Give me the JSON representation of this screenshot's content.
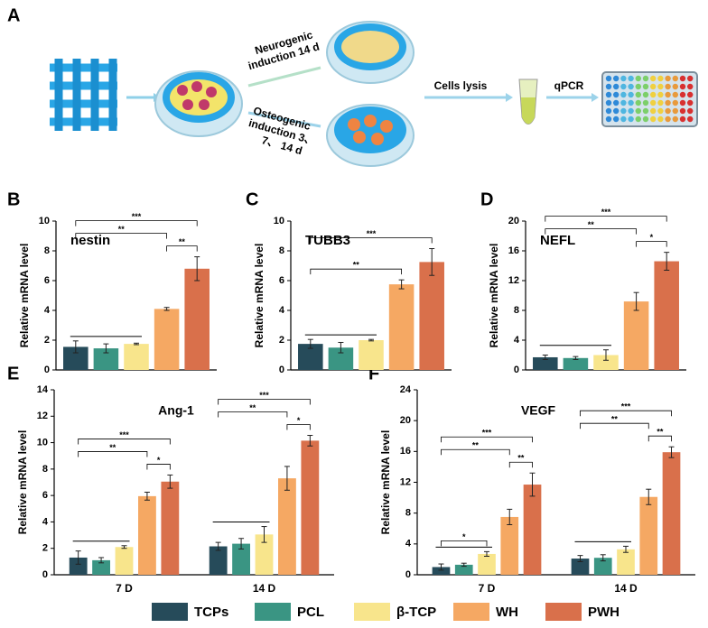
{
  "panel_labels": [
    "A",
    "B",
    "C",
    "D",
    "E",
    "F"
  ],
  "schematic": {
    "neurogenic": [
      "Neurogenic",
      "induction 14 d"
    ],
    "osteogenic": [
      "Osteogenic",
      "induction 3、",
      "7、 14 d"
    ],
    "lysis": "Cells lysis",
    "qpcr": "qPCR"
  },
  "chart_data": [
    {
      "type": "bar",
      "title": "nestin",
      "ylabel": "Relative mRNA level",
      "ylim": [
        0,
        10
      ],
      "yticks": [
        0,
        2,
        4,
        6,
        8,
        10
      ],
      "categories": [
        null,
        null,
        null,
        null,
        null
      ],
      "values": [
        1.55,
        1.45,
        1.75,
        4.1,
        6.8
      ],
      "errors": [
        0.4,
        0.3,
        0.05,
        0.1,
        0.8
      ],
      "colors": [
        "#264b5a",
        "#3a9583",
        "#f8e58c",
        "#f5a863",
        "#d9704b"
      ],
      "significance": [
        {
          "text": "**",
          "from": 3,
          "to": 4
        },
        {
          "text": "**",
          "from": 0,
          "to": 3
        },
        {
          "text": "***",
          "from": 0,
          "to": 4
        }
      ]
    },
    {
      "type": "bar",
      "title": "TUBB3",
      "ylabel": "Relative mRNA level",
      "ylim": [
        0,
        10
      ],
      "yticks": [
        0,
        2,
        4,
        6,
        8,
        10
      ],
      "categories": [
        null,
        null,
        null,
        null,
        null
      ],
      "values": [
        1.75,
        1.5,
        2.0,
        5.75,
        7.25
      ],
      "errors": [
        0.3,
        0.35,
        0.05,
        0.3,
        0.9
      ],
      "colors": [
        "#264b5a",
        "#3a9583",
        "#f8e58c",
        "#f5a863",
        "#d9704b"
      ],
      "significance": [
        {
          "text": "**",
          "from": 0,
          "to": 3
        },
        {
          "text": "***",
          "from": 0,
          "to": 4
        }
      ]
    },
    {
      "type": "bar",
      "title": "NEFL",
      "ylabel": "Relative  mRNA level",
      "ylim": [
        0,
        20
      ],
      "yticks": [
        0,
        4,
        8,
        12,
        16,
        20
      ],
      "categories": [
        null,
        null,
        null,
        null,
        null
      ],
      "values": [
        1.7,
        1.6,
        2.0,
        9.2,
        14.6
      ],
      "errors": [
        0.3,
        0.2,
        0.7,
        1.2,
        1.2
      ],
      "colors": [
        "#264b5a",
        "#3a9583",
        "#f8e58c",
        "#f5a863",
        "#d9704b"
      ],
      "significance": [
        {
          "text": "*",
          "from": 3,
          "to": 4
        },
        {
          "text": "**",
          "from": 0,
          "to": 3
        },
        {
          "text": "***",
          "from": 0,
          "to": 4
        }
      ]
    },
    {
      "type": "grouped_bar",
      "title": "Ang-1",
      "ylabel": "Relative mRNA level",
      "ylim": [
        0,
        14
      ],
      "yticks": [
        0,
        2,
        4,
        6,
        8,
        10,
        12,
        14
      ],
      "categories": [
        "7 D",
        "14 D"
      ],
      "series": [
        {
          "name": "TCPs",
          "color": "#264b5a",
          "values": [
            1.3,
            2.15
          ],
          "errors": [
            0.5,
            0.3
          ]
        },
        {
          "name": "PCL",
          "color": "#3a9583",
          "values": [
            1.1,
            2.35
          ],
          "errors": [
            0.2,
            0.4
          ]
        },
        {
          "name": "β-TCP",
          "color": "#f8e58c",
          "values": [
            2.1,
            3.05
          ],
          "errors": [
            0.1,
            0.6
          ]
        },
        {
          "name": "WH",
          "color": "#f5a863",
          "values": [
            5.95,
            7.3
          ],
          "errors": [
            0.3,
            0.9
          ]
        },
        {
          "name": "PWH",
          "color": "#d9704b",
          "values": [
            7.05,
            10.15
          ],
          "errors": [
            0.5,
            0.4
          ]
        }
      ],
      "significance": [
        {
          "category": 0,
          "text": "*",
          "from": 3,
          "to": 4
        },
        {
          "category": 0,
          "text": "**",
          "from": 0,
          "to": 3
        },
        {
          "category": 0,
          "text": "***",
          "from": 0,
          "to": 4
        },
        {
          "category": 1,
          "text": "*",
          "from": 3,
          "to": 4
        },
        {
          "category": 1,
          "text": "**",
          "from": 0,
          "to": 3
        },
        {
          "category": 1,
          "text": "***",
          "from": 0,
          "to": 4
        }
      ]
    },
    {
      "type": "grouped_bar",
      "title": "VEGF",
      "ylabel": "Relative  mRNA level",
      "ylim": [
        0,
        24
      ],
      "yticks": [
        0,
        4,
        8,
        12,
        16,
        20,
        24
      ],
      "categories": [
        "7 D",
        "14 D"
      ],
      "series": [
        {
          "name": "TCPs",
          "color": "#264b5a",
          "values": [
            1.0,
            2.1
          ],
          "errors": [
            0.4,
            0.4
          ]
        },
        {
          "name": "PCL",
          "color": "#3a9583",
          "values": [
            1.3,
            2.2
          ],
          "errors": [
            0.2,
            0.4
          ]
        },
        {
          "name": "β-TCP",
          "color": "#f8e58c",
          "values": [
            2.7,
            3.3
          ],
          "errors": [
            0.3,
            0.4
          ]
        },
        {
          "name": "WH",
          "color": "#f5a863",
          "values": [
            7.5,
            10.1
          ],
          "errors": [
            1.0,
            1.0
          ]
        },
        {
          "name": "PWH",
          "color": "#d9704b",
          "values": [
            11.7,
            15.9
          ],
          "errors": [
            1.5,
            0.7
          ]
        }
      ],
      "significance": [
        {
          "category": 0,
          "text": "*",
          "from": 0,
          "to": 2
        },
        {
          "category": 0,
          "text": "**",
          "from": 3,
          "to": 4
        },
        {
          "category": 0,
          "text": "**",
          "from": 0,
          "to": 3
        },
        {
          "category": 0,
          "text": "***",
          "from": 0,
          "to": 4
        },
        {
          "category": 1,
          "text": "**",
          "from": 3,
          "to": 4
        },
        {
          "category": 1,
          "text": "**",
          "from": 0,
          "to": 3
        },
        {
          "category": 1,
          "text": "***",
          "from": 0,
          "to": 4
        }
      ]
    }
  ]
}
